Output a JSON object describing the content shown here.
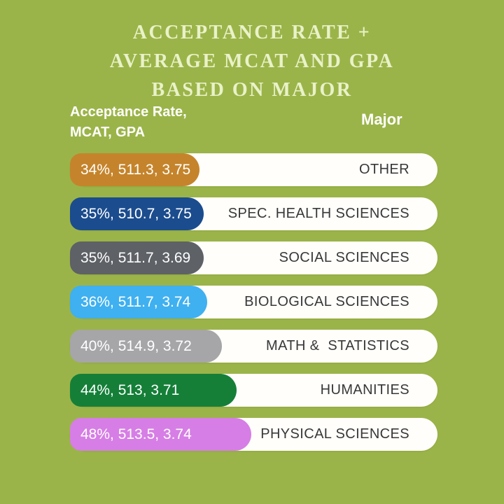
{
  "title": {
    "line1": "ACCEPTANCE RATE +",
    "line2": "AVERAGE MCAT AND GPA",
    "line3": "BASED ON MAJOR"
  },
  "column_headers": {
    "left_line1": "Acceptance Rate,",
    "left_line2": "MCAT, GPA",
    "right": "Major"
  },
  "colors": {
    "background": "#9bb449",
    "title_text": "#e9f2c9",
    "header_text": "#ffffff",
    "track_background": "#fffefb",
    "major_label_text": "#383838",
    "value_label_text": "#ffffff"
  },
  "chart_data": {
    "type": "bar",
    "orientation": "horizontal",
    "title": "ACCEPTANCE RATE + AVERAGE MCAT AND GPA BASED ON MAJOR",
    "legend_position": "none",
    "grid": false,
    "value_columns": [
      "Acceptance Rate (%)",
      "Average MCAT",
      "Average GPA"
    ],
    "categories": [
      "OTHER",
      "SPEC. HEALTH SCIENCES",
      "SOCIAL SCIENCES",
      "BIOLOGICAL SCIENCES",
      "MATH &  STATISTICS",
      "HUMANITIES",
      "PHYSICAL SCIENCES"
    ],
    "series": [
      {
        "name": "Acceptance Rate (%)",
        "values": [
          34,
          35,
          35,
          36,
          40,
          44,
          48
        ]
      },
      {
        "name": "Average MCAT",
        "values": [
          511.3,
          510.7,
          511.7,
          511.7,
          514.9,
          513,
          513.5
        ]
      },
      {
        "name": "Average GPA",
        "values": [
          3.75,
          3.75,
          3.69,
          3.74,
          3.72,
          3.71,
          3.74
        ]
      }
    ],
    "rows": [
      {
        "value_label": "34%, 511.3, 3.75",
        "major": "OTHER",
        "color": "#c5842b",
        "pct": 34
      },
      {
        "value_label": "35%, 510.7, 3.75",
        "major": "SPEC. HEALTH SCIENCES",
        "color": "#1b4c8e",
        "pct": 35
      },
      {
        "value_label": "35%, 511.7, 3.69",
        "major": "SOCIAL SCIENCES",
        "color": "#5e6166",
        "pct": 35
      },
      {
        "value_label": "36%, 511.7, 3.74",
        "major": "BIOLOGICAL SCIENCES",
        "color": "#3fb0f0",
        "pct": 36
      },
      {
        "value_label": "40%, 514.9, 3.72",
        "major": "MATH &  STATISTICS",
        "color": "#a6a5a8",
        "pct": 40
      },
      {
        "value_label": "44%, 513, 3.71",
        "major": "HUMANITIES",
        "color": "#157f38",
        "pct": 44
      },
      {
        "value_label": "48%, 513.5, 3.74",
        "major": "PHYSICAL SCIENCES",
        "color": "#d67ee5",
        "pct": 48
      }
    ]
  }
}
